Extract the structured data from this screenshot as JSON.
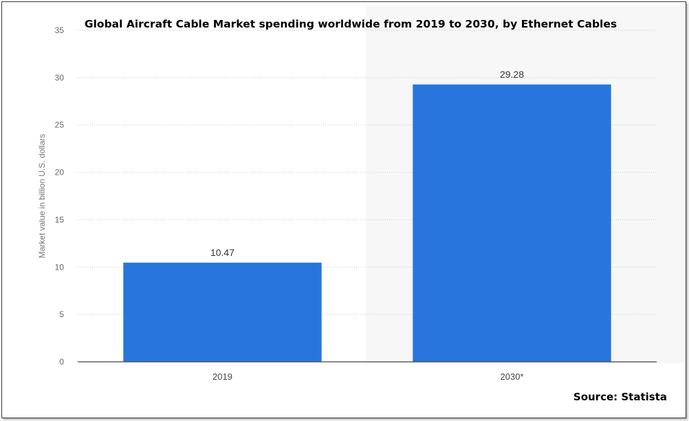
{
  "chart_data": {
    "type": "bar",
    "title": "Global Aircraft Cable Market spending worldwide from 2019 to 2030, by Ethernet Cables",
    "categories": [
      "2019",
      "2030*"
    ],
    "values": [
      10.47,
      29.28
    ],
    "value_labels": [
      "10.47",
      "29.28"
    ],
    "xlabel": "",
    "ylabel": "Market value in billion U.S. dollars",
    "ylim": [
      0,
      35
    ],
    "yticks": [
      0,
      5,
      10,
      15,
      20,
      25,
      30,
      35
    ],
    "grid": true,
    "bar_color": "#2876DD",
    "source": "Source: Statista"
  }
}
